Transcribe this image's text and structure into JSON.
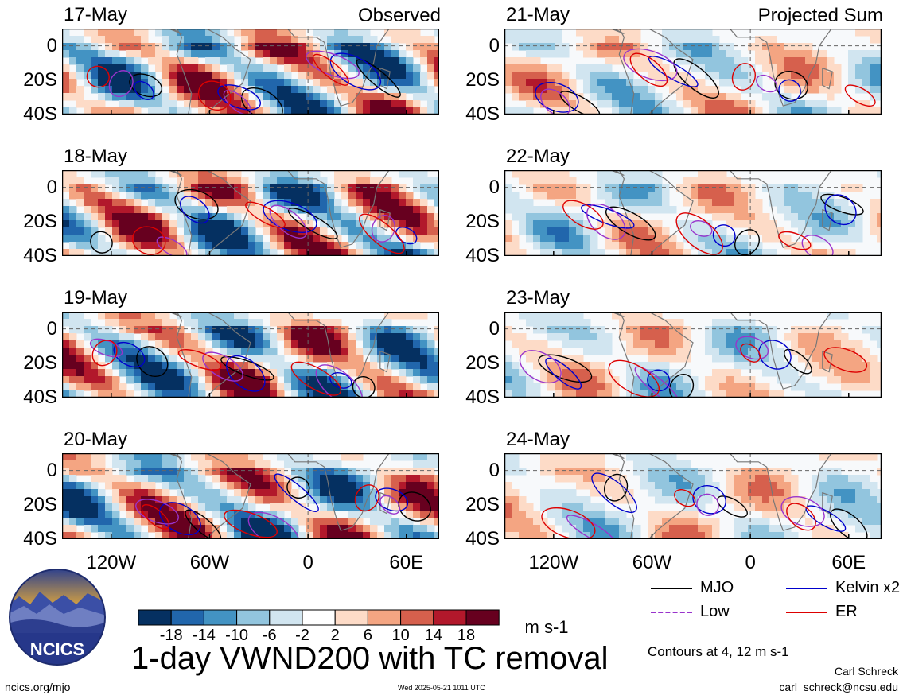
{
  "chart_data": {
    "type": "heatmap",
    "title": "1-day VWND200 with TC removal",
    "variable": "VWND200",
    "units": "m s-1",
    "columns": [
      {
        "header": "Observed",
        "dates": [
          "17-May",
          "18-May",
          "19-May",
          "20-May"
        ]
      },
      {
        "header": "Projected Sum",
        "dates": [
          "21-May",
          "22-May",
          "23-May",
          "24-May"
        ]
      }
    ],
    "x_ticks": [
      "120W",
      "60W",
      "0",
      "60E"
    ],
    "x_tick_values": [
      -120,
      -60,
      0,
      60
    ],
    "xlim": [
      -150,
      80
    ],
    "y_ticks": [
      "0",
      "20S",
      "40S"
    ],
    "y_tick_values": [
      0,
      -20,
      -40
    ],
    "ylim": [
      -40,
      10
    ],
    "colorbar_levels": [
      -18,
      -14,
      -10,
      -6,
      -2,
      2,
      6,
      10,
      14,
      18
    ],
    "colorbar_labels": [
      "-18",
      "-14",
      "-10",
      "-6",
      "-2",
      "2",
      "6",
      "10",
      "14",
      "18"
    ],
    "colorbar_colors": [
      "#053061",
      "#2166ac",
      "#4393c3",
      "#92c5de",
      "#d1e5f0",
      "#ffffff",
      "#fddbc7",
      "#f4a582",
      "#d6604d",
      "#b2182b",
      "#67001f"
    ],
    "contours_note": "Contours at 4, 12 m s-1",
    "legend": [
      {
        "name": "MJO",
        "color": "#000000"
      },
      {
        "name": "Kelvin x2",
        "color": "#0000cc"
      },
      {
        "name": "Low",
        "color": "#9933cc"
      },
      {
        "name": "ER",
        "color": "#dd0000"
      }
    ]
  },
  "footer": {
    "left": "ncics.org/mjo",
    "center": "Wed 2025-05-21 1011 UTC",
    "author": "Carl Schreck",
    "email": "carl_schreck@ncsu.edu"
  },
  "logo": {
    "text": "NCICS"
  }
}
